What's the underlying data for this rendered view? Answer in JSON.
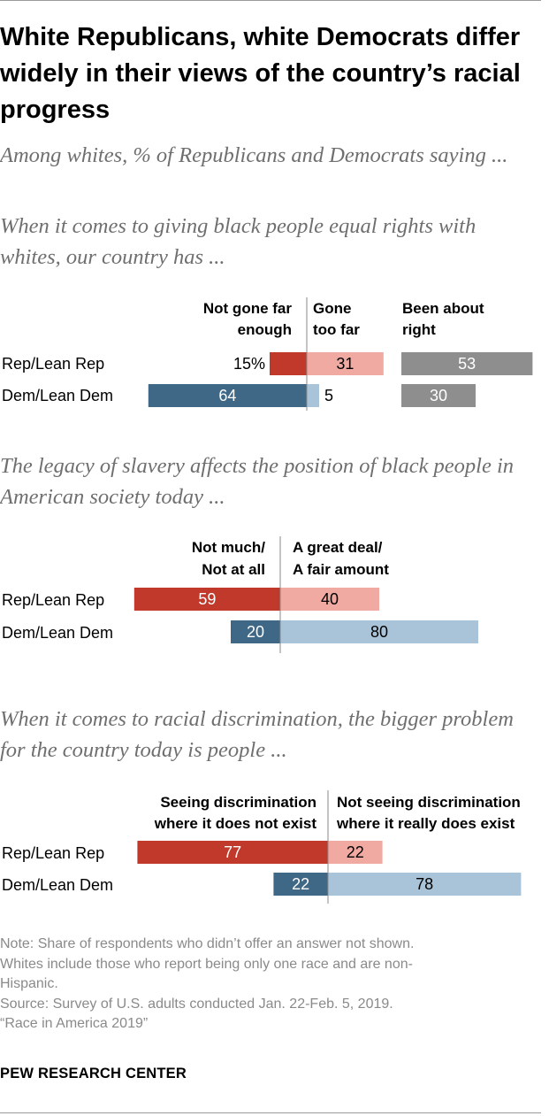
{
  "title": "White Republicans, white Democrats differ widely in their views of the country’s racial progress",
  "subtitle": "Among whites, % of Republicans and Democrats saying ...",
  "colors": {
    "rep_dark": "#c0392b",
    "rep_light": "#f0aaa2",
    "dem_dark": "#3f6786",
    "dem_light": "#a9c4d8",
    "gray": "#8e8e8e"
  },
  "chart_data": [
    {
      "type": "bar",
      "question": "When it comes to giving black people equal rights with whites, our country has ...",
      "rows": [
        "Rep/Lean Rep",
        "Dem/Lean Dem"
      ],
      "categories_headers": [
        "Not gone far enough",
        "Gone too far",
        "Been about right"
      ],
      "series": [
        {
          "name": "Not gone far enough",
          "values": [
            15,
            64
          ],
          "labels": [
            "15%",
            "64"
          ]
        },
        {
          "name": "Gone too far",
          "values": [
            31,
            5
          ],
          "labels": [
            "31",
            "5"
          ]
        },
        {
          "name": "Been about right",
          "values": [
            53,
            30
          ],
          "labels": [
            "53",
            "30"
          ]
        }
      ]
    },
    {
      "type": "bar",
      "question": "The legacy of slavery affects the position of black people in American society today ...",
      "rows": [
        "Rep/Lean Rep",
        "Dem/Lean Dem"
      ],
      "categories_headers": [
        "Not much/ Not at all",
        "A great deal/ A fair amount"
      ],
      "series": [
        {
          "name": "Not much/Not at all",
          "values": [
            59,
            20
          ],
          "labels": [
            "59",
            "20"
          ]
        },
        {
          "name": "A great deal/A fair amount",
          "values": [
            40,
            80
          ],
          "labels": [
            "40",
            "80"
          ]
        }
      ]
    },
    {
      "type": "bar",
      "question": "When it comes to racial discrimination, the bigger problem for the country today is people ...",
      "rows": [
        "Rep/Lean Rep",
        "Dem/Lean Dem"
      ],
      "categories_headers": [
        "Seeing discrimination where it does not exist",
        "Not seeing discrimination where it really does exist"
      ],
      "series": [
        {
          "name": "Seeing discrimination where it does not exist",
          "values": [
            77,
            22
          ],
          "labels": [
            "77",
            "22"
          ]
        },
        {
          "name": "Not seeing discrimination where it really does exist",
          "values": [
            22,
            78
          ],
          "labels": [
            "22",
            "78"
          ]
        }
      ]
    }
  ],
  "chart1": {
    "question": "When it comes to giving black people equal rights with whites, our country has ...",
    "headers": {
      "left_1": "Not gone far",
      "left_2": "enough",
      "mid_1": "Gone",
      "mid_2": "too far",
      "right_1": "Been about",
      "right_2": "right"
    }
  },
  "chart2": {
    "question": "The legacy of slavery affects the position of black people in American society today ...",
    "headers": {
      "left_1": "Not much/",
      "left_2": "Not at all",
      "right_1": "A great deal/",
      "right_2": "A fair amount"
    }
  },
  "chart3": {
    "question": "When it comes to racial discrimination, the bigger problem for the country today is people ...",
    "headers": {
      "left_1": "Seeing discrimination",
      "left_2": "where it does not exist",
      "right_1": "Not seeing discrimination",
      "right_2": "where it really does exist"
    }
  },
  "rows": {
    "rep": "Rep/Lean Rep",
    "dem": "Dem/Lean Dem"
  },
  "notes": {
    "line1": "Note: Share of respondents who didn’t offer an answer not shown.",
    "line2": "Whites include those who report being only one race and are non-",
    "line3": "Hispanic.",
    "line4": "Source: Survey of U.S. adults conducted Jan. 22-Feb. 5, 2019.",
    "line5": "“Race in America 2019”"
  },
  "source_org": "PEW RESEARCH CENTER"
}
